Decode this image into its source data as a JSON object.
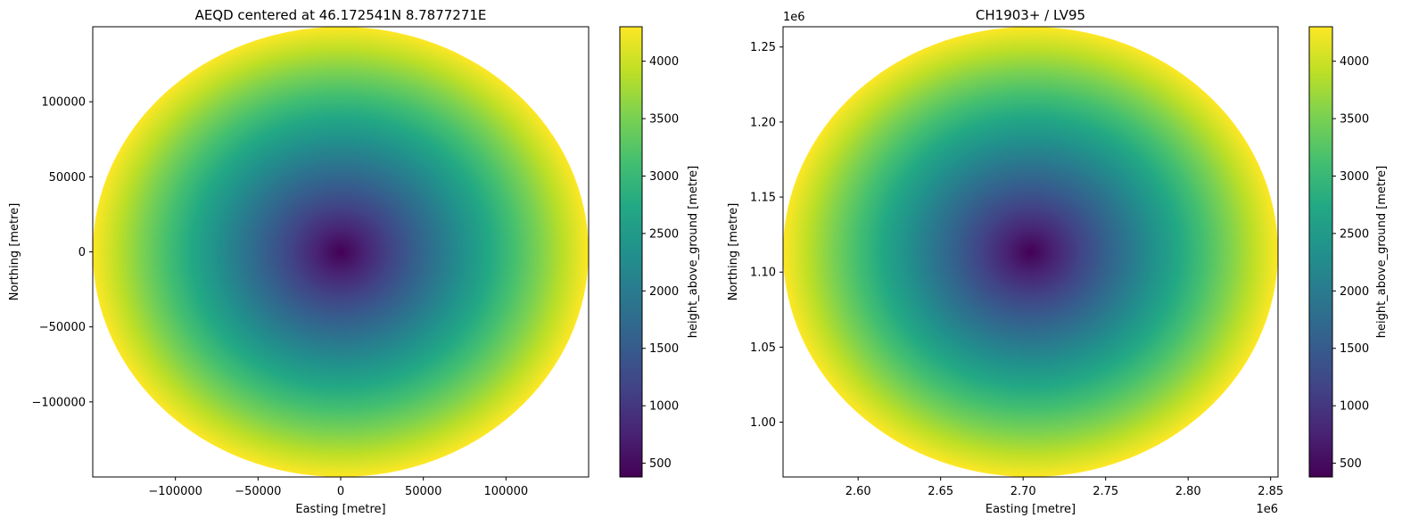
{
  "chart_data": [
    {
      "type": "heatmap",
      "title": "AEQD centered at 46.172541N 8.7877271E",
      "xlabel": "Easting [metre]",
      "ylabel": "Northing [metre]",
      "xlim": [
        -150000,
        150000
      ],
      "ylim": [
        -150000,
        150000
      ],
      "x_offset_label": "",
      "y_offset_label": "",
      "x_ticks": [
        -100000,
        -50000,
        0,
        50000,
        100000
      ],
      "x_tick_labels": [
        "−100000",
        "−50000",
        "0",
        "50000",
        "100000"
      ],
      "y_ticks": [
        -100000,
        -50000,
        0,
        50000,
        100000
      ],
      "y_tick_labels": [
        "−100000",
        "−50000",
        "0",
        "50000",
        "100000"
      ],
      "center": [
        0,
        0
      ],
      "radius": 150000,
      "value_at_center": 380,
      "value_at_edge": 4300,
      "colorbar": {
        "label": "height_above_ground [metre]",
        "colormap": "viridis",
        "vmin": 380,
        "vmax": 4300,
        "ticks": [
          500,
          1000,
          1500,
          2000,
          2500,
          3000,
          3500,
          4000
        ],
        "tick_labels": [
          "500",
          "1000",
          "1500",
          "2000",
          "2500",
          "3000",
          "3500",
          "4000"
        ]
      },
      "grid": false
    },
    {
      "type": "heatmap",
      "title": "CH1903+ / LV95",
      "xlabel": "Easting [metre]",
      "ylabel": "Northing [metre]",
      "xlim": [
        2554500,
        2854500
      ],
      "ylim": [
        963500,
        1263500
      ],
      "x_offset_label": "1e6",
      "y_offset_label": "1e6",
      "x_ticks": [
        2600000,
        2650000,
        2700000,
        2750000,
        2800000,
        2850000
      ],
      "x_tick_labels": [
        "2.60",
        "2.65",
        "2.70",
        "2.75",
        "2.80",
        "2.85"
      ],
      "y_ticks": [
        1000000,
        1050000,
        1100000,
        1150000,
        1200000,
        1250000
      ],
      "y_tick_labels": [
        "1.00",
        "1.05",
        "1.10",
        "1.15",
        "1.20",
        "1.25"
      ],
      "center": [
        2704500,
        1113500
      ],
      "radius": 150000,
      "value_at_center": 380,
      "value_at_edge": 4300,
      "colorbar": {
        "label": "height_above_ground [metre]",
        "colormap": "viridis",
        "vmin": 380,
        "vmax": 4300,
        "ticks": [
          500,
          1000,
          1500,
          2000,
          2500,
          3000,
          3500,
          4000
        ],
        "tick_labels": [
          "500",
          "1000",
          "1500",
          "2000",
          "2500",
          "3000",
          "3500",
          "4000"
        ]
      },
      "grid": false
    }
  ]
}
